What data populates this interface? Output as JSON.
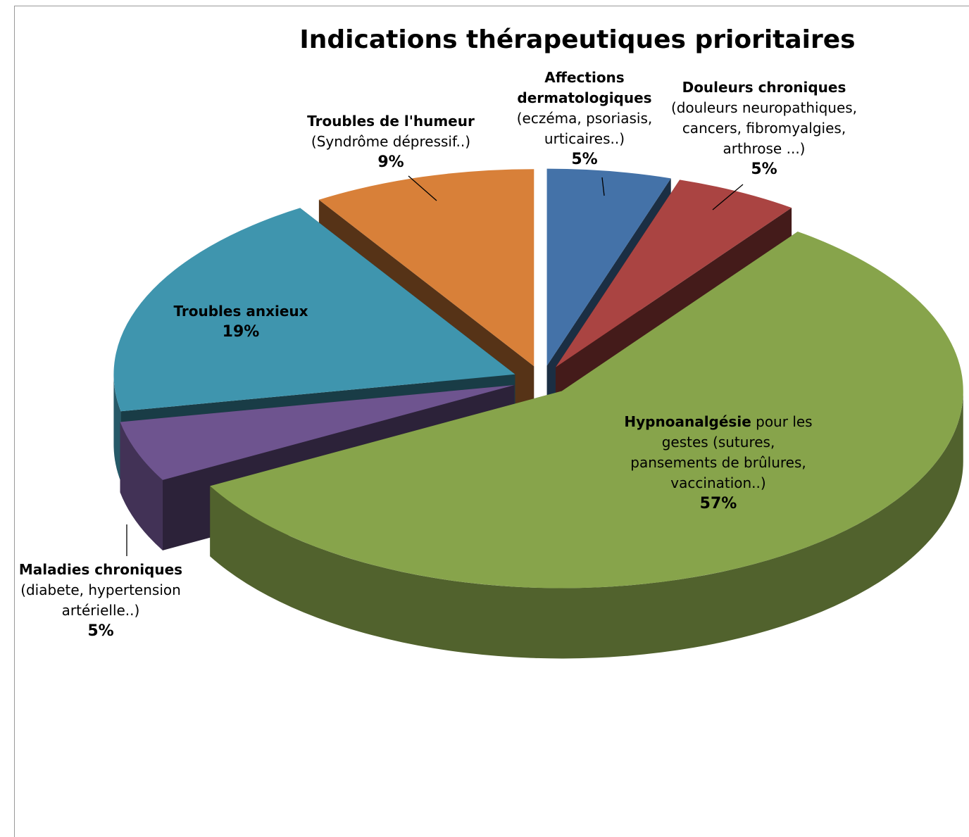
{
  "chart_data": {
    "type": "pie",
    "title": "Indications thérapeutiques prioritaires",
    "categories": [
      "Affections dermatologiques",
      "Douleurs chroniques",
      "Hypnoanalgésie",
      "Maladies chroniques",
      "Troubles anxieux",
      "Troubles de l'humeur"
    ],
    "descriptions": [
      "(eczéma, psoriasis, urticaires..)",
      "(douleurs neuropathiques, cancers, fibromyalgies, arthrose ...)",
      "pour les gestes (sutures, pansements de brûlures, vaccination..)",
      "(diabete, hypertension artérielle..)",
      null,
      "(Syndrôme dépressif..)"
    ],
    "values": [
      5,
      5,
      57,
      5,
      19,
      9
    ],
    "value_labels": [
      "5%",
      "5%",
      "57%",
      "5%",
      "19%",
      "9%"
    ],
    "colors": [
      "#4472a8",
      "#aa4442",
      "#87a44b",
      "#6e548f",
      "#3f95ae",
      "#d88039"
    ]
  }
}
